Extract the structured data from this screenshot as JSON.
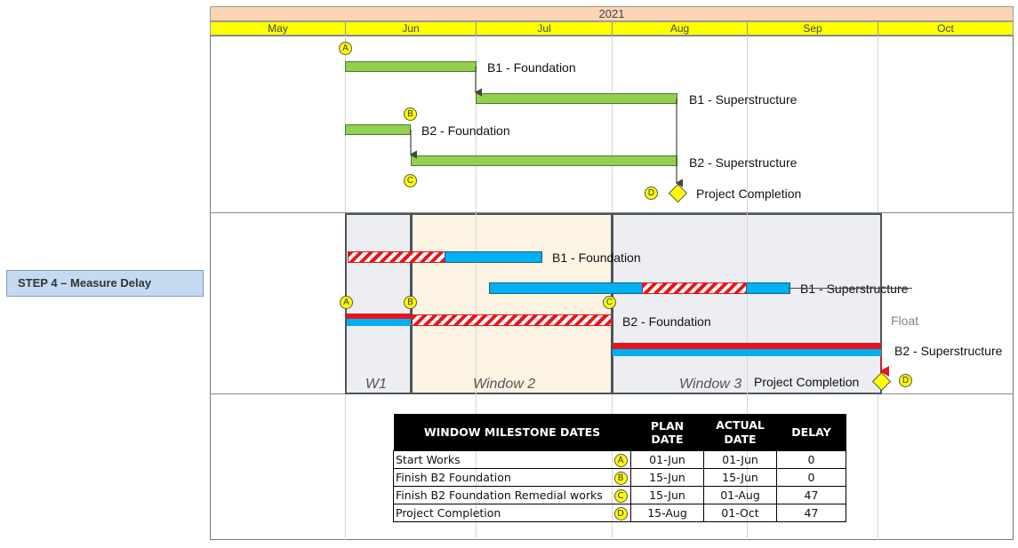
{
  "sidebar": {
    "step_label": "STEP 4 – Measure Delay"
  },
  "timeline": {
    "year": "2021",
    "months": [
      "May",
      "Jun",
      "Jul",
      "Aug",
      "Sep",
      "Oct"
    ]
  },
  "planned": {
    "tasks": [
      {
        "label": "B1 - Foundation"
      },
      {
        "label": "B1 - Superstructure"
      },
      {
        "label": "B2  - Foundation"
      },
      {
        "label": "B2  - Superstructure"
      }
    ],
    "milestone_label": "Project Completion",
    "markers": [
      "A",
      "B",
      "C",
      "D"
    ]
  },
  "actual": {
    "tasks": [
      {
        "label": "B1 - Foundation"
      },
      {
        "label": "B1 - Superstructure"
      },
      {
        "label": "B2 - Foundation"
      },
      {
        "label": "B2 - Superstructure"
      }
    ],
    "float_label": "Float",
    "milestone_label": "Project Completion",
    "windows": [
      "W1",
      "Window 2",
      "Window 3"
    ],
    "markers": [
      "A",
      "B",
      "C",
      "D"
    ]
  },
  "table": {
    "headers": [
      "WINDOW MILESTONE DATES",
      "PLAN DATE",
      "ACTUAL DATE",
      "DELAY"
    ],
    "header_actual_line1": "ACTUAL",
    "header_actual_line2": "DATE",
    "rows": [
      {
        "desc": "Start Works",
        "marker": "A",
        "plan": "01-Jun",
        "actual": "01-Jun",
        "delay": "0"
      },
      {
        "desc": "Finish B2 Foundation",
        "marker": "B",
        "plan": "15-Jun",
        "actual": "15-Jun",
        "delay": "0"
      },
      {
        "desc": "Finish B2 Foundation Remedial works",
        "marker": "C",
        "plan": "15-Jun",
        "actual": "01-Aug",
        "delay": "47"
      },
      {
        "desc": "Project Completion",
        "marker": "D",
        "plan": "15-Aug",
        "actual": "01-Oct",
        "delay": "47"
      }
    ]
  },
  "colors": {
    "planned_bar": "#92d050",
    "actual_bar": "#00b0f0",
    "delay": "#e8141b",
    "milestone": "#ffff00",
    "year_header": "#fcd5b4",
    "month_header": "#ffff00",
    "window_grey": "#eceef1",
    "window_beige": "#fdf3e3"
  }
}
